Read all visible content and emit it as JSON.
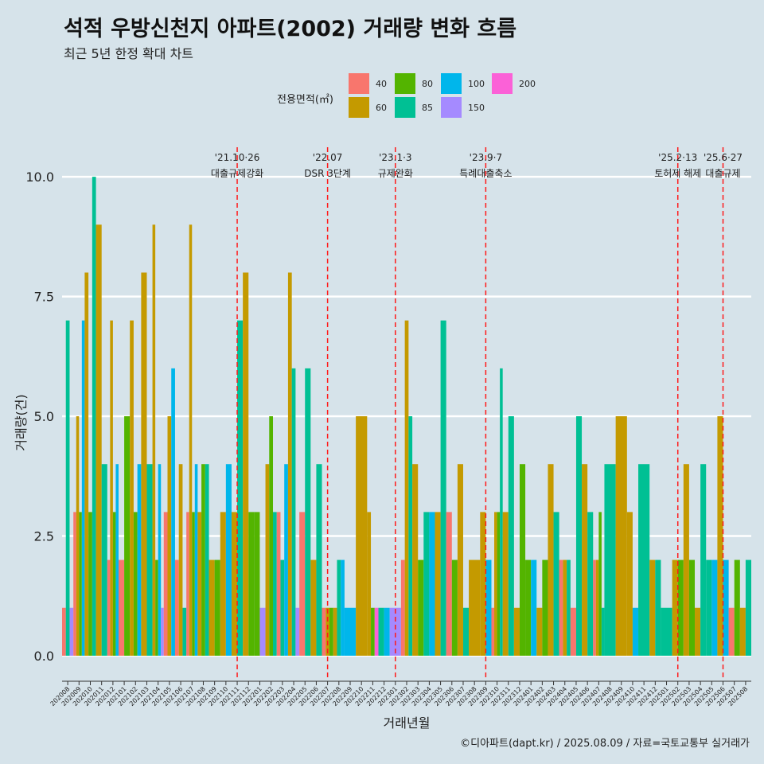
{
  "title": "석적 우방신천지 아파트(2002) 거래량 변화 흐름",
  "subtitle": "최근 5년 한정 확대 차트",
  "caption": "©디아파트(dapt.kr) / 2025.08.09 / 자료=국토교통부 실거래가",
  "legend": {
    "title": "전용면적(㎡)",
    "items": [
      {
        "label": "40",
        "color": "#f8766d"
      },
      {
        "label": "60",
        "color": "#c49a00"
      },
      {
        "label": "80",
        "color": "#53b400"
      },
      {
        "label": "85",
        "color": "#00c094"
      },
      {
        "label": "100",
        "color": "#00b6eb"
      },
      {
        "label": "150",
        "color": "#a58aff"
      },
      {
        "label": "200",
        "color": "#fb61d7"
      }
    ]
  },
  "chart_data": {
    "type": "bar",
    "title": "석적 우방신천지 아파트(2002) 거래량 변화 흐름",
    "xlabel": "거래년월",
    "ylabel": "거래량(건)",
    "ylim": [
      -0.4,
      10.7
    ],
    "yticks": [
      "0.0",
      "2.5",
      "5.0",
      "7.5",
      "10.0"
    ],
    "ytick_values": [
      0,
      2.5,
      5,
      7.5,
      10
    ],
    "categories": [
      "202008",
      "202009",
      "202010",
      "202011",
      "202012",
      "202101",
      "202102",
      "202103",
      "202104",
      "202105",
      "202106",
      "202107",
      "202108",
      "202109",
      "202110",
      "202111",
      "202112",
      "202201",
      "202202",
      "202203",
      "202204",
      "202205",
      "202206",
      "202207",
      "202208",
      "202209",
      "202210",
      "202211",
      "202212",
      "202301",
      "202302",
      "202303",
      "202304",
      "202305",
      "202306",
      "202307",
      "202308",
      "202309",
      "202310",
      "202311",
      "202312",
      "202401",
      "202402",
      "202403",
      "202404",
      "202405",
      "202406",
      "202407",
      "202408",
      "202409",
      "202410",
      "202411",
      "202412",
      "202501",
      "202502",
      "202503",
      "202504",
      "202505",
      "202506",
      "202507",
      "202508"
    ],
    "series": [
      {
        "name": "40",
        "values": [
          1,
          3,
          0,
          0,
          2,
          2,
          0,
          0,
          0,
          3,
          2,
          3,
          0,
          0,
          0,
          0,
          0,
          0,
          0,
          3,
          0,
          3,
          0,
          1,
          0,
          0,
          0,
          0,
          0,
          0,
          2,
          0,
          0,
          0,
          3,
          0,
          0,
          0,
          1,
          0,
          0,
          0,
          0,
          0,
          2,
          1,
          0,
          2,
          0,
          0,
          0,
          0,
          0,
          0,
          0,
          0,
          0,
          0,
          0,
          1,
          0
        ]
      },
      {
        "name": "60",
        "values": [
          0,
          5,
          8,
          9,
          7,
          0,
          7,
          8,
          9,
          5,
          4,
          9,
          3,
          2,
          3,
          3,
          8,
          0,
          4,
          0,
          8,
          0,
          2,
          1,
          1,
          0,
          5,
          3,
          0,
          0,
          7,
          4,
          0,
          3,
          0,
          4,
          2,
          3,
          3,
          3,
          1,
          0,
          1,
          4,
          2,
          0,
          4,
          2,
          0,
          5,
          3,
          0,
          2,
          0,
          2,
          4,
          1,
          0,
          5,
          0,
          1
        ]
      },
      {
        "name": "80",
        "values": [
          0,
          3,
          3,
          0,
          3,
          5,
          3,
          0,
          2,
          0,
          0,
          3,
          4,
          2,
          0,
          0,
          3,
          3,
          5,
          0,
          0,
          0,
          0,
          1,
          0,
          0,
          0,
          1,
          0,
          0,
          0,
          2,
          0,
          0,
          2,
          0,
          0,
          0,
          3,
          0,
          4,
          2,
          2,
          0,
          0,
          0,
          0,
          3,
          0,
          0,
          0,
          0,
          0,
          0,
          2,
          2,
          0,
          0,
          0,
          2,
          0
        ]
      },
      {
        "name": "85",
        "values": [
          7,
          0,
          10,
          4,
          0,
          0,
          0,
          4,
          0,
          0,
          1,
          0,
          4,
          0,
          0,
          7,
          0,
          0,
          3,
          2,
          6,
          6,
          4,
          0,
          2,
          0,
          0,
          0,
          1,
          0,
          5,
          0,
          3,
          7,
          0,
          1,
          0,
          0,
          6,
          5,
          0,
          0,
          0,
          3,
          2,
          5,
          3,
          1,
          4,
          0,
          0,
          4,
          2,
          1,
          0,
          0,
          4,
          2,
          0,
          0,
          2
        ]
      },
      {
        "name": "100",
        "values": [
          0,
          7,
          0,
          0,
          4,
          0,
          4,
          0,
          4,
          6,
          0,
          4,
          0,
          0,
          4,
          0,
          0,
          0,
          0,
          4,
          0,
          0,
          0,
          0,
          2,
          1,
          0,
          0,
          1,
          0,
          0,
          0,
          3,
          0,
          0,
          0,
          0,
          2,
          0,
          0,
          0,
          2,
          0,
          0,
          0,
          0,
          0,
          0,
          0,
          0,
          1,
          0,
          0,
          0,
          0,
          0,
          0,
          2,
          2,
          0,
          0
        ]
      },
      {
        "name": "150",
        "values": [
          1,
          0,
          0,
          0,
          0,
          0,
          0,
          0,
          1,
          0,
          0,
          0,
          0,
          0,
          0,
          0,
          0,
          1,
          0,
          0,
          1,
          0,
          0,
          0,
          0,
          0,
          0,
          0,
          0,
          1,
          0,
          0,
          0,
          0,
          0,
          0,
          0,
          0,
          0,
          0,
          0,
          0,
          0,
          0,
          0,
          0,
          0,
          0,
          0,
          0,
          0,
          0,
          0,
          0,
          0,
          0,
          0,
          0,
          0,
          0,
          0
        ]
      },
      {
        "name": "200",
        "values": [
          0,
          0,
          0,
          0,
          0,
          0,
          0,
          0,
          0,
          0,
          0,
          0,
          0,
          0,
          0,
          0,
          0,
          0,
          0,
          0,
          0,
          0,
          0,
          0,
          0,
          0,
          0,
          1,
          0,
          0,
          0,
          0,
          0,
          0,
          0,
          0,
          0,
          0,
          0,
          0,
          0,
          0,
          0,
          0,
          0,
          0,
          0,
          0,
          0,
          0,
          0,
          0,
          0,
          0,
          0,
          0,
          0,
          0,
          0,
          0,
          0
        ]
      }
    ],
    "events": [
      {
        "label1": "'21.10·26",
        "label2": "대출규제강화",
        "month": "202111"
      },
      {
        "label1": "'22.07",
        "label2": "DSR 3단계",
        "month": "202207"
      },
      {
        "label1": "'23.1·3",
        "label2": "규제완화",
        "month": "202301"
      },
      {
        "label1": "'23.9·7",
        "label2": "특례대출축소",
        "month": "202309"
      },
      {
        "label1": "'25.2·13",
        "label2": "토허제 해제",
        "month": "202502"
      },
      {
        "label1": "'25.6·27",
        "label2": "대출규제",
        "month": "202506"
      }
    ]
  }
}
